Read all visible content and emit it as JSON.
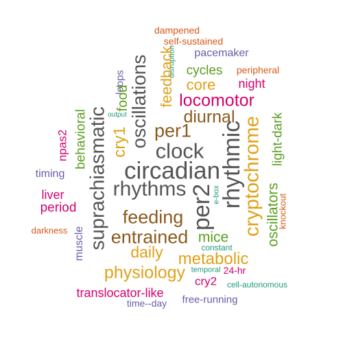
{
  "colors": {
    "gray": "#555555",
    "brown": "#8b5a1e",
    "gold": "#e0a117",
    "green": "#5a9e1f",
    "magenta": "#d6006e",
    "purple": "#6a5ea8",
    "orange": "#d65a16",
    "teal": "#1e9a78"
  },
  "words": [
    {
      "text": "dampened",
      "color": "orange"
    },
    {
      "text": "self-sustained",
      "color": "orange"
    },
    {
      "text": "pacemaker",
      "color": "purple"
    },
    {
      "text": "disruption",
      "color": "teal"
    },
    {
      "text": "feedback",
      "color": "gold"
    },
    {
      "text": "oscillations",
      "color": "gray"
    },
    {
      "text": "loops",
      "color": "purple"
    },
    {
      "text": "cycles",
      "color": "green"
    },
    {
      "text": "peripheral",
      "color": "orange"
    },
    {
      "text": "core",
      "color": "gold"
    },
    {
      "text": "night",
      "color": "magenta"
    },
    {
      "text": "food",
      "color": "green"
    },
    {
      "text": "locomotor",
      "color": "magenta"
    },
    {
      "text": "suprachiasmatic",
      "color": "gray"
    },
    {
      "text": "muscle",
      "color": "purple"
    },
    {
      "text": "behavioral",
      "color": "green"
    },
    {
      "text": "output",
      "color": "teal"
    },
    {
      "text": "npas2",
      "color": "magenta"
    },
    {
      "text": "diurnal",
      "color": "brown"
    },
    {
      "text": "cry1",
      "color": "gold"
    },
    {
      "text": "per1",
      "color": "brown"
    },
    {
      "text": "cryptochrome",
      "color": "gold"
    },
    {
      "text": "light-dark",
      "color": "green"
    },
    {
      "text": "clock",
      "color": "gray"
    },
    {
      "text": "rhythmic",
      "color": "gray"
    },
    {
      "text": "circadian",
      "color": "gray"
    },
    {
      "text": "timing",
      "color": "purple"
    },
    {
      "text": "rhythms",
      "color": "gray"
    },
    {
      "text": "per2",
      "color": "gray"
    },
    {
      "text": "e-box",
      "color": "teal"
    },
    {
      "text": "oscillators",
      "color": "green"
    },
    {
      "text": "knockout",
      "color": "orange"
    },
    {
      "text": "liver",
      "color": "magenta"
    },
    {
      "text": "period",
      "color": "magenta"
    },
    {
      "text": "feeding",
      "color": "brown"
    },
    {
      "text": "darkness",
      "color": "orange"
    },
    {
      "text": "entrained",
      "color": "brown"
    },
    {
      "text": "mice",
      "color": "green"
    },
    {
      "text": "constant",
      "color": "teal"
    },
    {
      "text": "daily",
      "color": "gold"
    },
    {
      "text": "metabolic",
      "color": "gold"
    },
    {
      "text": "physiology",
      "color": "gold"
    },
    {
      "text": "temporal",
      "color": "teal"
    },
    {
      "text": "24-hr",
      "color": "magenta"
    },
    {
      "text": "cry2",
      "color": "magenta"
    },
    {
      "text": "cell-autonomous",
      "color": "teal"
    },
    {
      "text": "translocator-like",
      "color": "magenta"
    },
    {
      "text": "time--day",
      "color": "purple"
    },
    {
      "text": "free-running",
      "color": "purple"
    }
  ]
}
